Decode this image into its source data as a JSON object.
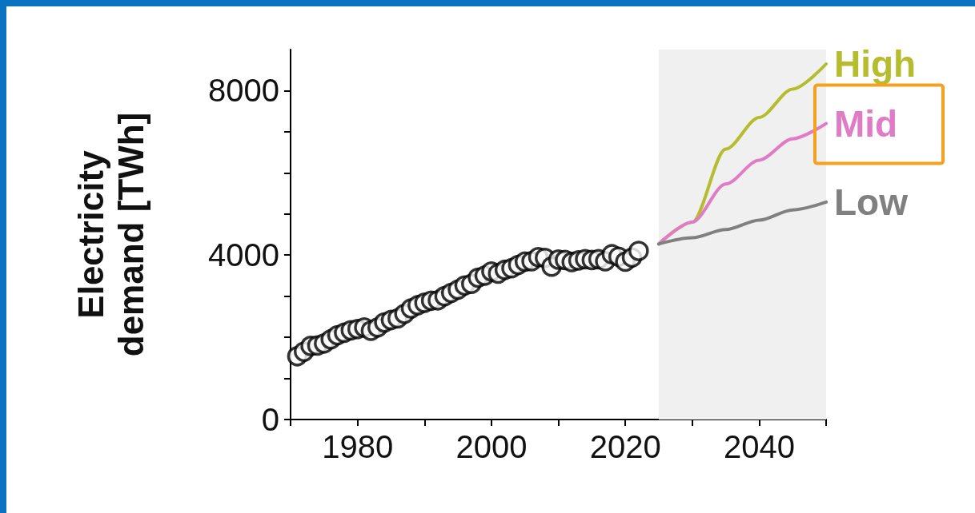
{
  "chart_data": {
    "type": "scatter",
    "ylabel": "Electricity\ndemand [TWh]",
    "xlim": [
      1970,
      2050
    ],
    "xticks": [
      {
        "value": 1970,
        "label": null
      },
      1980,
      {
        "value": 1990,
        "label": null
      },
      2000,
      {
        "value": 2010,
        "label": null
      },
      2020,
      {
        "value": 2030,
        "label": null
      },
      2040,
      {
        "value": 2050,
        "label": null
      }
    ],
    "ylim": [
      0,
      9000
    ],
    "yticks": [
      0,
      {
        "value": 1000,
        "label": null
      },
      {
        "value": 2000,
        "label": null
      },
      {
        "value": 3000,
        "label": null
      },
      4000,
      {
        "value": 5000,
        "label": null
      },
      {
        "value": 6000,
        "label": null
      },
      {
        "value": 7000,
        "label": null
      },
      8000
    ],
    "grid": false,
    "legend": false,
    "bands": [
      {
        "axis": "x",
        "from": 2025,
        "to": 2050,
        "color": "#f0f0f0"
      }
    ],
    "series": [
      {
        "marker": "circle",
        "color": "#000000",
        "x": [
          1971,
          1972,
          1973,
          1974,
          1975,
          1976,
          1977,
          1978,
          1979,
          1980,
          1981,
          1982,
          1983,
          1984,
          1985,
          1986,
          1987,
          1988,
          1989,
          1990,
          1991,
          1992,
          1993,
          1994,
          1995,
          1996,
          1997,
          1998,
          1999,
          2000,
          2001,
          2002,
          2003,
          2004,
          2005,
          2006,
          2007,
          2008,
          2009,
          2010,
          2011,
          2012,
          2013,
          2014,
          2015,
          2016,
          2017,
          2018,
          2019,
          2020,
          2021,
          2022
        ],
        "values": [
          1540,
          1650,
          1790,
          1800,
          1850,
          1950,
          2050,
          2110,
          2170,
          2200,
          2240,
          2160,
          2240,
          2360,
          2420,
          2460,
          2570,
          2700,
          2780,
          2840,
          2890,
          2900,
          3000,
          3080,
          3160,
          3260,
          3300,
          3450,
          3500,
          3600,
          3550,
          3640,
          3680,
          3760,
          3840,
          3850,
          3950,
          3930,
          3720,
          3890,
          3880,
          3830,
          3870,
          3900,
          3880,
          3900,
          3850,
          4020,
          3960,
          3840,
          3940,
          4100
        ]
      },
      {
        "type": "line",
        "name": "High",
        "color": "#b5bd2e",
        "marker": "none",
        "x": [
          2025,
          2030,
          2035,
          2040,
          2045,
          2050
        ],
        "values": [
          4270,
          4800,
          6580,
          7350,
          8040,
          8650
        ]
      },
      {
        "type": "line",
        "name": "Mid",
        "color": "#e07cc5",
        "marker": "none",
        "x": [
          2025,
          2030,
          2035,
          2040,
          2045,
          2050
        ],
        "values": [
          4270,
          4800,
          5730,
          6310,
          6830,
          7200
        ]
      },
      {
        "type": "line",
        "name": "Low",
        "color": "#808080",
        "marker": "none",
        "x": [
          2025,
          2030,
          2035,
          2040,
          2045,
          2050
        ],
        "values": [
          4270,
          4420,
          4620,
          4850,
          5100,
          5290
        ]
      }
    ]
  }
}
